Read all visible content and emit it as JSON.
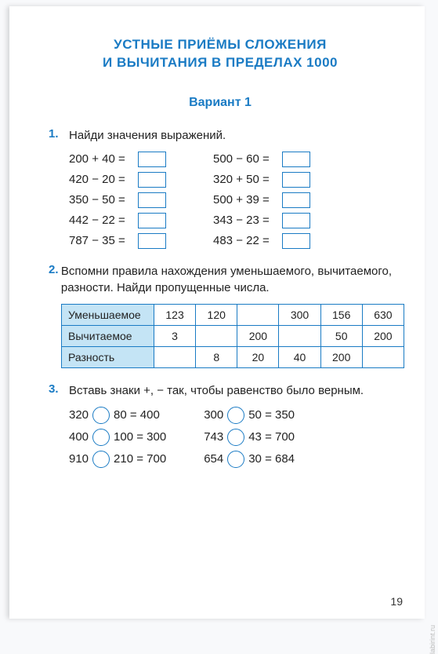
{
  "title_line1": "УСТНЫЕ  ПРИЁМЫ  СЛОЖЕНИЯ",
  "title_line2": "И  ВЫЧИТАНИЯ  В  ПРЕДЕЛАХ  1000",
  "variant": "Вариант  1",
  "task1": {
    "num": "1.",
    "text": "Найди значения выражений.",
    "left": [
      {
        "expr": "200 + 40 ="
      },
      {
        "expr": "420 − 20 ="
      },
      {
        "expr": "350 − 50 ="
      },
      {
        "expr": "442 − 22 ="
      },
      {
        "expr": "787 − 35 ="
      }
    ],
    "right": [
      {
        "expr": "500 − 60 ="
      },
      {
        "expr": "320 + 50 ="
      },
      {
        "expr": "500 + 39 ="
      },
      {
        "expr": "343 − 23 ="
      },
      {
        "expr": "483 − 22 ="
      }
    ]
  },
  "task2": {
    "num": "2.",
    "text": "Вспомни правила нахождения уменьшаемого, вычитаемого, разности. Найди пропущенные числа.",
    "headers": [
      "Уменьшаемое",
      "Вычитаемое",
      "Разность"
    ],
    "cols": 6,
    "rows": [
      [
        "123",
        "120",
        "",
        "300",
        "156",
        "630"
      ],
      [
        "3",
        "",
        "200",
        "",
        "50",
        "200"
      ],
      [
        "",
        "8",
        "20",
        "40",
        "200",
        ""
      ]
    ]
  },
  "task3": {
    "num": "3.",
    "text": "Вставь знаки +, − так, чтобы равенство было верным.",
    "left": [
      {
        "a": "320",
        "b": "80",
        "r": "400"
      },
      {
        "a": "400",
        "b": "100",
        "r": "300"
      },
      {
        "a": "910",
        "b": "210",
        "r": "700"
      }
    ],
    "right": [
      {
        "a": "300",
        "b": "50",
        "r": "350"
      },
      {
        "a": "743",
        "b": "43",
        "r": "700"
      },
      {
        "a": "654",
        "b": "30",
        "r": "684"
      }
    ]
  },
  "pagenum": "19",
  "watermark": "labirint.ru"
}
